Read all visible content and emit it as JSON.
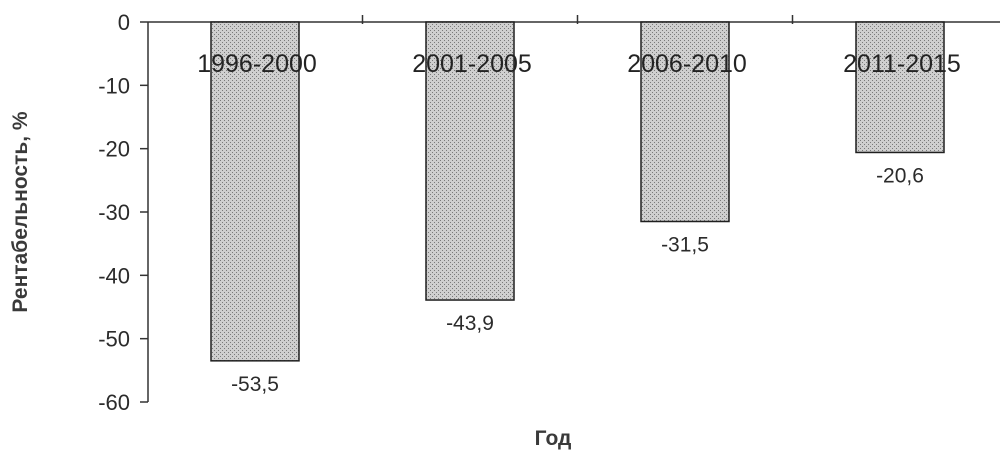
{
  "chart_data": {
    "type": "bar",
    "title": "",
    "xlabel": "Год",
    "ylabel": "Рентабельность, %",
    "categories": [
      "1996-2000",
      "2001-2005",
      "2006-2010",
      "2011-2015"
    ],
    "values": [
      -53.5,
      -43.9,
      -31.5,
      -20.6
    ],
    "value_labels": [
      "-53,5",
      "-43,9",
      "-31,5",
      "-20,6"
    ],
    "ylim": [
      -60,
      0
    ],
    "yticks": [
      0,
      -10,
      -20,
      -30,
      -40,
      -50,
      -60
    ],
    "ytick_labels": [
      "0",
      "-10",
      "-20",
      "-30",
      "-40",
      "-50",
      "-60"
    ],
    "grid": false,
    "legend": "none",
    "bar_fill": "#bdbdbd",
    "bar_stroke": "#1f1f1f"
  }
}
